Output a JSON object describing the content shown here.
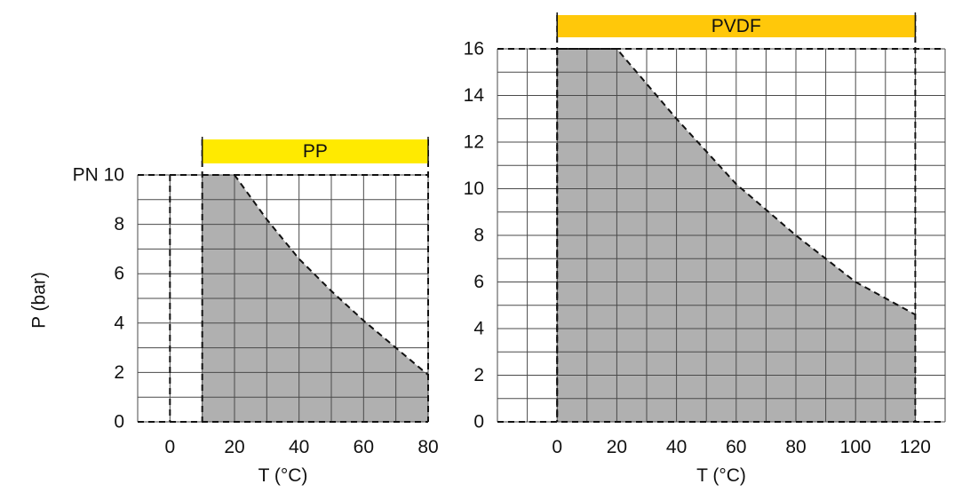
{
  "y_axis_title": "P (bar)",
  "chart_data": [
    {
      "type": "area",
      "title": "PP",
      "xlabel": "T (°C)",
      "ylabel": "P (bar)",
      "xlim": [
        -10,
        80
      ],
      "ylim": [
        0,
        10
      ],
      "x_ticks": [
        0,
        20,
        40,
        60,
        80
      ],
      "y_ticks": [
        0,
        2,
        4,
        6,
        8,
        10
      ],
      "y_tick_labels": [
        "0",
        "2",
        "4",
        "6",
        "8",
        "PN 10"
      ],
      "x_tick_labels": [
        "0",
        "20",
        "40",
        "60",
        "80"
      ],
      "band_color": "#ffea00",
      "fill_color": "#b0b0b0",
      "series": [
        {
          "x": [
            10,
            20,
            30,
            40,
            50,
            60,
            70,
            80
          ],
          "y": [
            10,
            10,
            8.2,
            6.6,
            5.3,
            4.1,
            3.0,
            1.9
          ]
        }
      ]
    },
    {
      "type": "area",
      "title": "PVDF",
      "xlabel": "T (°C)",
      "ylabel": "",
      "xlim": [
        -20,
        130
      ],
      "ylim": [
        0,
        16
      ],
      "x_ticks": [
        0,
        20,
        40,
        60,
        80,
        100,
        120
      ],
      "y_ticks": [
        0,
        2,
        4,
        6,
        8,
        10,
        12,
        14,
        16
      ],
      "y_tick_labels": [
        "0",
        "2",
        "4",
        "6",
        "8",
        "10",
        "12",
        "14",
        "16"
      ],
      "x_tick_labels": [
        "0",
        "20",
        "40",
        "60",
        "80",
        "100",
        "120"
      ],
      "band_color": "#ffc80a",
      "fill_color": "#b0b0b0",
      "series": [
        {
          "x": [
            0,
            20,
            40,
            60,
            80,
            100,
            120
          ],
          "y": [
            16,
            16,
            13.0,
            10.2,
            8.0,
            6.0,
            4.6
          ]
        }
      ]
    }
  ]
}
